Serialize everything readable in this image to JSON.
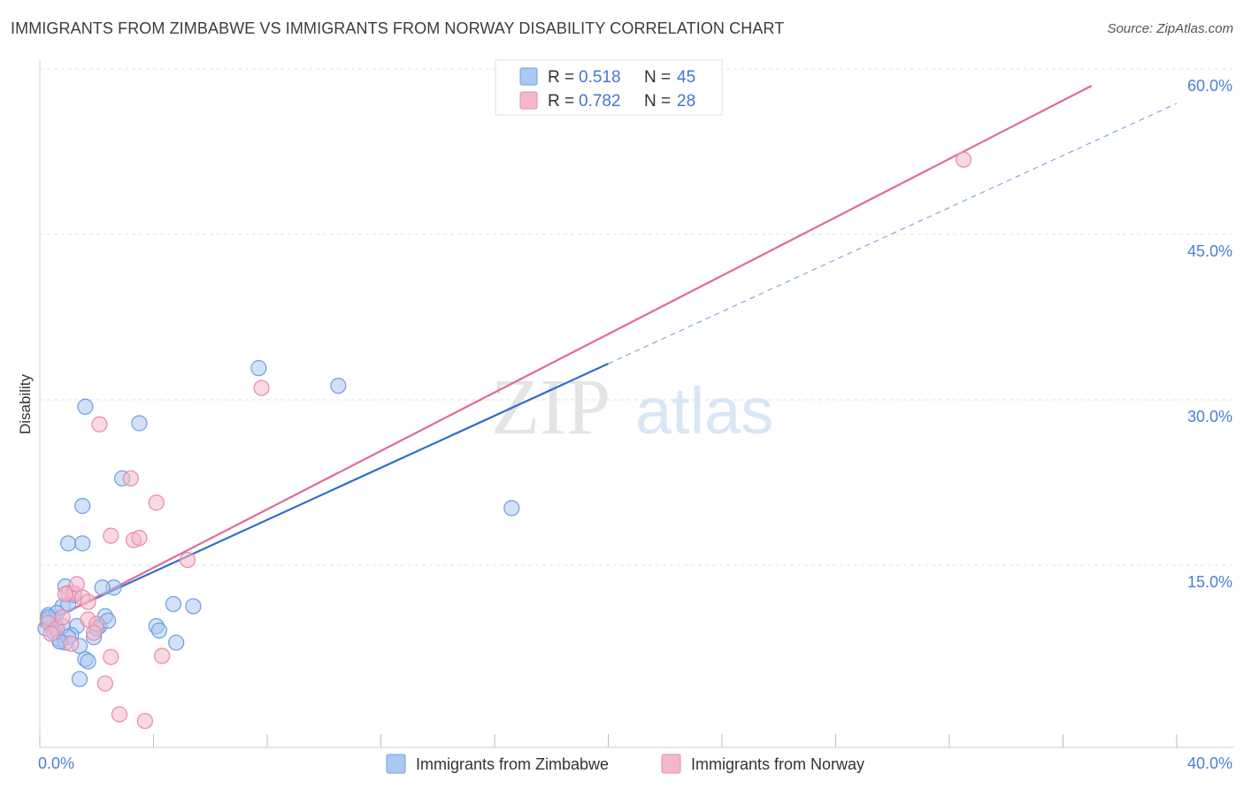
{
  "title": "IMMIGRANTS FROM ZIMBABWE VS IMMIGRANTS FROM NORWAY DISABILITY CORRELATION CHART",
  "source": "Source: ZipAtlas.com",
  "chart_data": {
    "type": "scatter",
    "ylabel": "Disability",
    "xlim": [
      0,
      40
    ],
    "ylim": [
      0,
      60
    ],
    "x_ticks": [
      {
        "value": 0,
        "label": "0.0%"
      },
      {
        "value": 40,
        "label": "40.0%"
      }
    ],
    "y_ticks": [
      {
        "value": 15,
        "label": "15.0%"
      },
      {
        "value": 30,
        "label": "30.0%"
      },
      {
        "value": 45,
        "label": "45.0%"
      },
      {
        "value": 60,
        "label": "60.0%"
      }
    ],
    "watermark": {
      "zip": "ZIP",
      "atlas": "atlas"
    },
    "legend_stats": [
      {
        "r_label": "R = ",
        "r_value": "0.518",
        "n_label": "N = ",
        "n_value": "45",
        "color": "#a9c8f2"
      },
      {
        "r_label": "R = ",
        "r_value": "0.782",
        "n_label": "N = ",
        "n_value": "28",
        "color": "#f5b8cb"
      }
    ],
    "series": [
      {
        "name": "Immigrants from Zimbabwe",
        "color": "#a9c8f2",
        "stroke": "#6d9ee0",
        "trend_color": "#2e6fcc",
        "trend": {
          "x0": 0,
          "y0": 11.2,
          "x1": 20,
          "y1": 34.8,
          "dash_to_x": 40,
          "dash_to_y": 58.4
        },
        "points": [
          [
            0.3,
            12.0
          ],
          [
            0.5,
            11.5
          ],
          [
            0.8,
            12.8
          ],
          [
            1.0,
            13.0
          ],
          [
            1.3,
            11.0
          ],
          [
            0.6,
            10.5
          ],
          [
            0.7,
            9.8
          ],
          [
            0.9,
            9.5
          ],
          [
            1.1,
            10.2
          ],
          [
            1.4,
            9.2
          ],
          [
            0.4,
            11.2
          ],
          [
            0.2,
            10.8
          ],
          [
            1.2,
            13.8
          ],
          [
            0.9,
            14.6
          ],
          [
            1.6,
            8.0
          ],
          [
            1.7,
            7.8
          ],
          [
            1.4,
            6.2
          ],
          [
            2.1,
            11.0
          ],
          [
            2.3,
            11.9
          ],
          [
            2.4,
            11.5
          ],
          [
            2.6,
            14.5
          ],
          [
            2.2,
            14.5
          ],
          [
            1.0,
            18.5
          ],
          [
            1.5,
            18.5
          ],
          [
            1.5,
            21.9
          ],
          [
            1.6,
            30.9
          ],
          [
            2.9,
            24.4
          ],
          [
            3.5,
            29.4
          ],
          [
            4.1,
            11.0
          ],
          [
            4.2,
            10.6
          ],
          [
            4.7,
            13.0
          ],
          [
            4.8,
            9.5
          ],
          [
            5.4,
            12.8
          ],
          [
            7.7,
            34.4
          ],
          [
            10.5,
            32.8
          ],
          [
            16.6,
            21.7
          ],
          [
            0.3,
            11.6
          ],
          [
            0.6,
            12.2
          ],
          [
            0.8,
            11.0
          ],
          [
            1.0,
            10.0
          ],
          [
            0.5,
            10.4
          ],
          [
            0.3,
            11.8
          ],
          [
            1.9,
            10.0
          ],
          [
            2.0,
            10.8
          ],
          [
            0.7,
            9.6
          ]
        ]
      },
      {
        "name": "Immigrants from Norway",
        "color": "#f5b8cb",
        "stroke": "#e58aa8",
        "trend_color": "#e06b95",
        "trend": {
          "x0": 0,
          "y0": 11.0,
          "x1": 37,
          "y1": 60.0
        },
        "points": [
          [
            0.3,
            11.3
          ],
          [
            0.6,
            10.8
          ],
          [
            0.8,
            11.8
          ],
          [
            1.0,
            14.0
          ],
          [
            1.2,
            14.0
          ],
          [
            1.3,
            14.8
          ],
          [
            0.9,
            13.9
          ],
          [
            0.4,
            10.3
          ],
          [
            1.5,
            13.6
          ],
          [
            1.7,
            13.2
          ],
          [
            1.7,
            11.6
          ],
          [
            2.0,
            11.2
          ],
          [
            1.9,
            10.4
          ],
          [
            1.1,
            9.4
          ],
          [
            2.1,
            29.3
          ],
          [
            2.5,
            19.2
          ],
          [
            3.2,
            24.4
          ],
          [
            3.3,
            18.8
          ],
          [
            3.5,
            19.0
          ],
          [
            4.1,
            22.2
          ],
          [
            4.3,
            8.3
          ],
          [
            5.2,
            17.0
          ],
          [
            2.5,
            8.2
          ],
          [
            2.3,
            5.8
          ],
          [
            2.8,
            3.0
          ],
          [
            3.7,
            2.4
          ],
          [
            7.8,
            32.6
          ],
          [
            32.5,
            53.3
          ]
        ]
      }
    ]
  }
}
